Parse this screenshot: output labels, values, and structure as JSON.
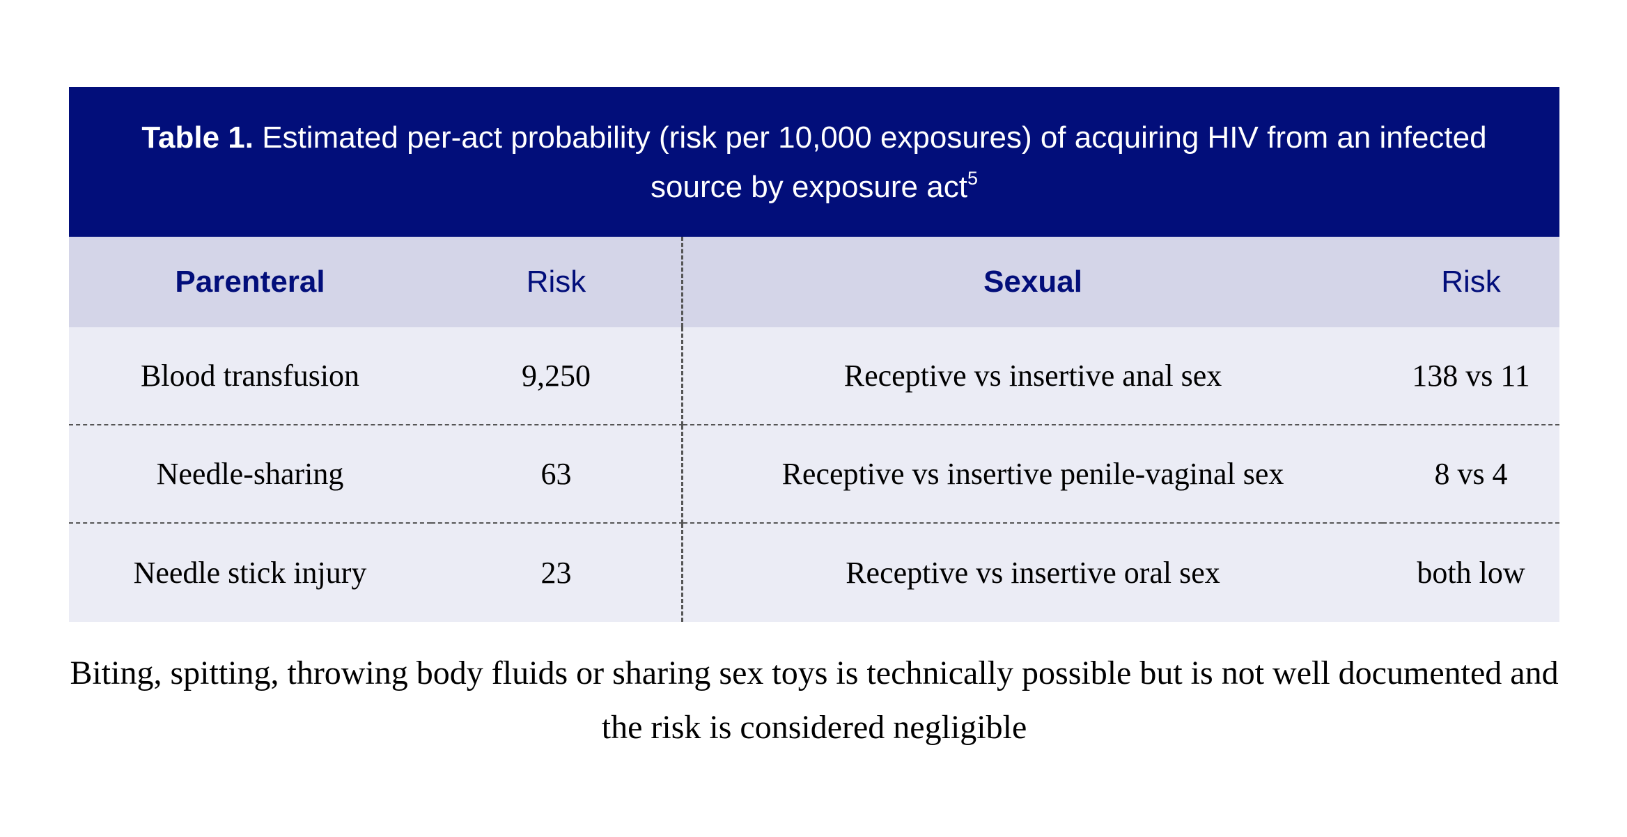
{
  "table": {
    "caption_label": "Table 1.",
    "caption_text": "Estimated per-act probability (risk per 10,000 exposures) of acquiring HIV from an infected source by exposure act",
    "caption_ref": "5",
    "headers": [
      "Parenteral",
      "Risk",
      "Sexual",
      "Risk"
    ],
    "rows": [
      {
        "parenteral": "Blood transfusion",
        "parenteral_risk": "9,250",
        "sexual": "Receptive vs insertive anal sex",
        "sexual_risk": "138 vs 11"
      },
      {
        "parenteral": "Needle-sharing",
        "parenteral_risk": "63",
        "sexual": "Receptive vs insertive penile-vaginal sex",
        "sexual_risk": "8 vs 4"
      },
      {
        "parenteral": "Needle stick injury",
        "parenteral_risk": "23",
        "sexual": "Receptive vs insertive oral sex",
        "sexual_risk": "both low"
      }
    ]
  },
  "footnote": "Biting, spitting, throwing body fluids or sharing sex toys is technically possible but is not well documented and the risk is considered negligible",
  "colors": {
    "caption_bg": "#020e7a",
    "header_bg": "#d4d5e8",
    "row_bg": "#ebecf5",
    "header_text": "#020e7a"
  }
}
